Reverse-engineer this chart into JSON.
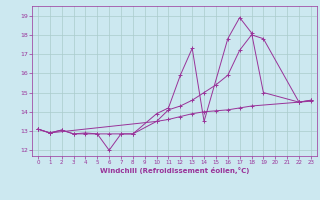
{
  "xlabel": "Windchill (Refroidissement éolien,°C)",
  "background_color": "#cce8f0",
  "grid_color": "#aacccc",
  "line_color": "#993399",
  "xlim": [
    -0.5,
    23.5
  ],
  "ylim": [
    11.7,
    19.5
  ],
  "yticks": [
    12,
    13,
    14,
    15,
    16,
    17,
    18,
    19
  ],
  "xticks": [
    0,
    1,
    2,
    3,
    4,
    5,
    6,
    7,
    8,
    9,
    10,
    11,
    12,
    13,
    14,
    15,
    16,
    17,
    18,
    19,
    20,
    21,
    22,
    23
  ],
  "line1_x": [
    0,
    1,
    2,
    3,
    4,
    5,
    6,
    7,
    8,
    10,
    11,
    12,
    13,
    14,
    16,
    17,
    18,
    19,
    22,
    23
  ],
  "line1_y": [
    13.1,
    12.9,
    13.05,
    12.85,
    12.85,
    12.85,
    12.0,
    12.85,
    12.85,
    13.9,
    14.2,
    15.9,
    17.3,
    13.5,
    17.8,
    18.9,
    18.1,
    15.0,
    14.5,
    14.6
  ],
  "line2_x": [
    0,
    1,
    2,
    3,
    4,
    5,
    6,
    7,
    8,
    10,
    11,
    12,
    13,
    14,
    15,
    16,
    17,
    18,
    22,
    23
  ],
  "line2_y": [
    13.1,
    12.9,
    13.05,
    12.85,
    12.9,
    12.85,
    12.85,
    12.85,
    12.85,
    13.5,
    13.6,
    13.75,
    13.9,
    14.0,
    14.05,
    14.1,
    14.2,
    14.3,
    14.5,
    14.55
  ],
  "line3_x": [
    0,
    1,
    10,
    11,
    12,
    13,
    14,
    15,
    16,
    17,
    18,
    19,
    22,
    23
  ],
  "line3_y": [
    13.1,
    12.9,
    13.5,
    14.1,
    14.3,
    14.6,
    15.0,
    15.4,
    15.9,
    17.2,
    18.0,
    17.8,
    14.5,
    14.6
  ]
}
